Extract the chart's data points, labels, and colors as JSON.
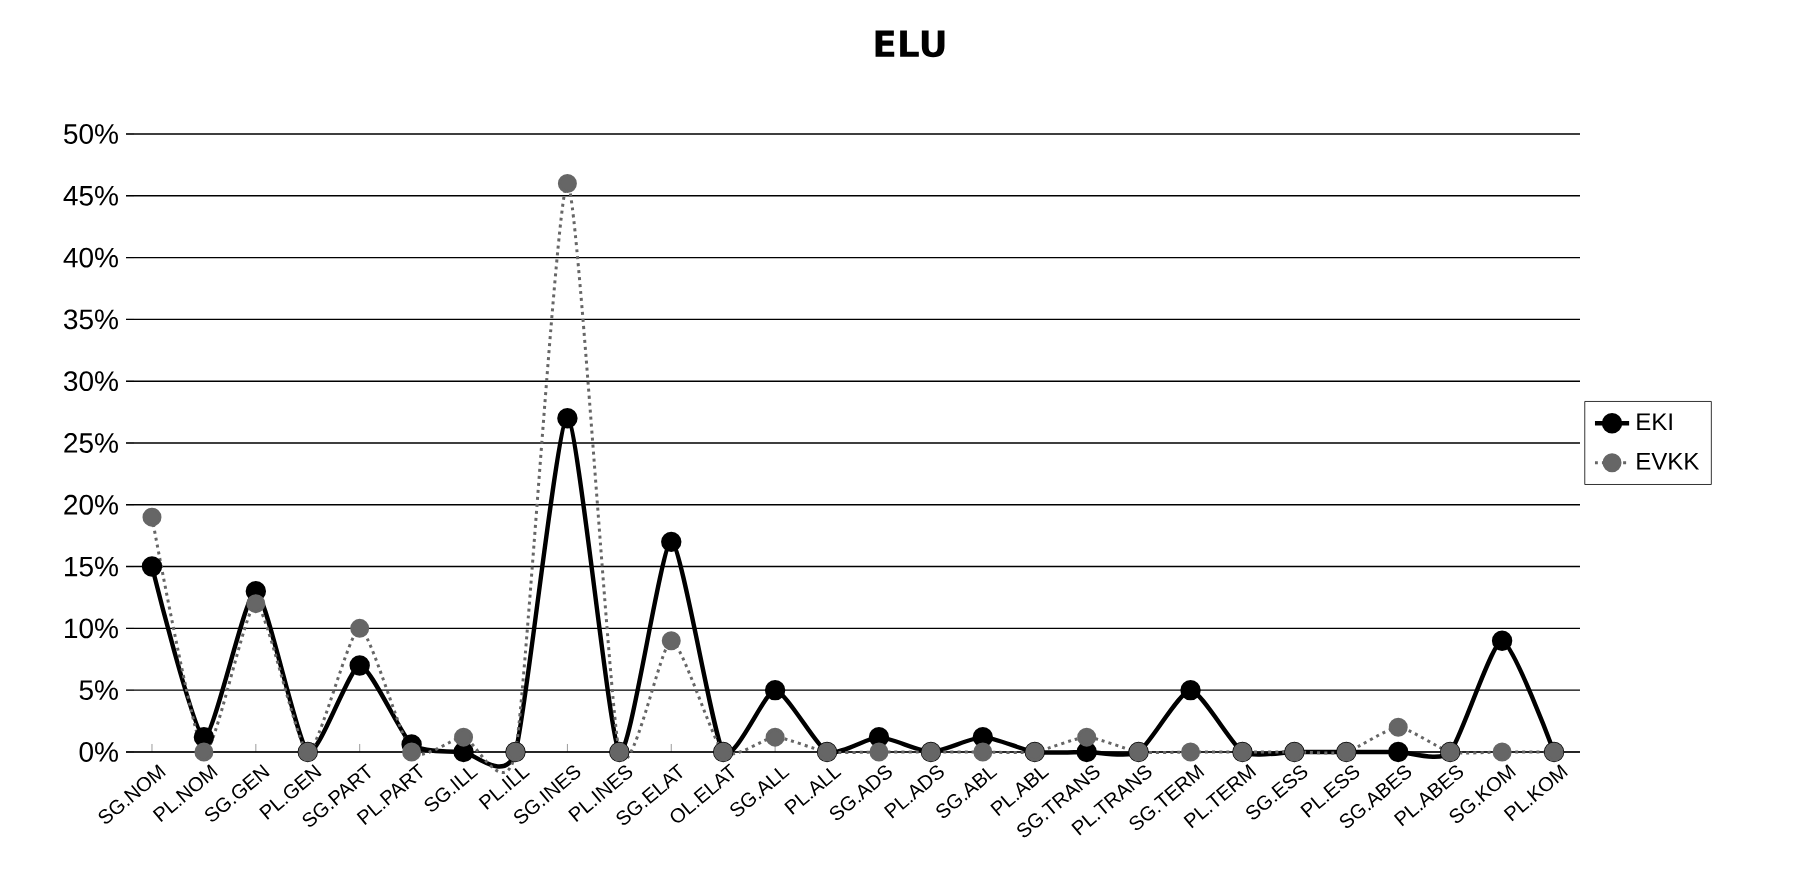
{
  "chart_data": {
    "type": "line",
    "title": "ELU",
    "categories": [
      "SG.NOM",
      "PL.NOM",
      "SG.GEN",
      "PL.GEN",
      "SG.PART",
      "PL.PART",
      "SG.ILL",
      "PL.ILL",
      "SG.INES",
      "PL.INES",
      "SG.ELAT",
      "OL.ELAT",
      "SG.ALL",
      "PL.ALL",
      "SG.ADS",
      "PL.ADS",
      "SG.ABL",
      "PL.ABL",
      "SG.TRANS",
      "PL.TRANS",
      "SG.TERM",
      "PL.TERM",
      "SG.ESS",
      "PL.ESS",
      "SG.ABES",
      "PL.ABES",
      "SG.KOM",
      "PL.KOM"
    ],
    "series": [
      {
        "name": "EKI",
        "color": "#000000",
        "line_style": "solid",
        "values": [
          15,
          1.2,
          13,
          0,
          7,
          0.6,
          0,
          0,
          27,
          0,
          17,
          0,
          5,
          0,
          1.2,
          0,
          1.2,
          0,
          0,
          0,
          5,
          0,
          0,
          0,
          0,
          0,
          9,
          0
        ]
      },
      {
        "name": "EVKK",
        "color": "#666666",
        "line_style": "dotted",
        "values": [
          19,
          0,
          12,
          0,
          10,
          0,
          1.2,
          0,
          46,
          0,
          9,
          0,
          1.2,
          0,
          0,
          0,
          0,
          0,
          1.2,
          0,
          0,
          0,
          0,
          0,
          2,
          0,
          0,
          0
        ]
      }
    ],
    "ylim": [
      0,
      50
    ],
    "yticks": [
      {
        "value": 0,
        "label": "0%"
      },
      {
        "value": 5,
        "label": "5%"
      },
      {
        "value": 10,
        "label": "10%"
      },
      {
        "value": 15,
        "label": "15%"
      },
      {
        "value": 20,
        "label": "20%"
      },
      {
        "value": 25,
        "label": "25%"
      },
      {
        "value": 30,
        "label": "30%"
      },
      {
        "value": 35,
        "label": "35%"
      },
      {
        "value": 40,
        "label": "40%"
      },
      {
        "value": 45,
        "label": "45%"
      },
      {
        "value": 50,
        "label": "50%"
      }
    ],
    "grid": "y",
    "legend": "right",
    "marker": "circle"
  }
}
